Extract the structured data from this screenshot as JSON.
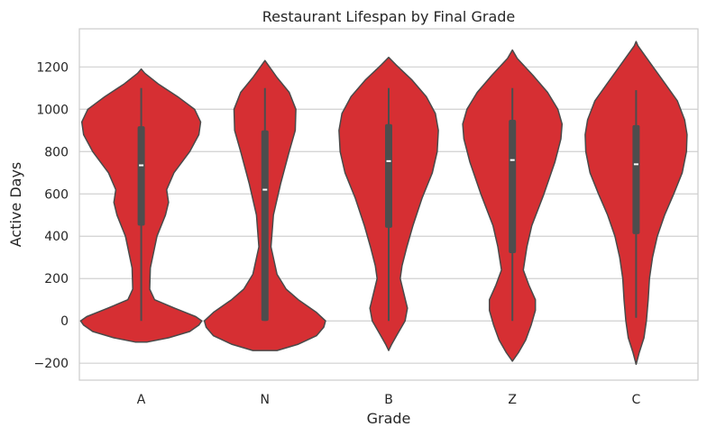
{
  "chart_data": {
    "type": "violin",
    "title": "Restaurant Lifespan by Final Grade",
    "xlabel": "Grade",
    "ylabel": "Active Days",
    "categories": [
      "A",
      "N",
      "B",
      "Z",
      "C"
    ],
    "ylim": [
      -280,
      1380
    ],
    "yticks": [
      -200,
      0,
      200,
      400,
      600,
      800,
      1000,
      1200
    ],
    "ytick_labels": [
      "−200",
      "0",
      "200",
      "400",
      "600",
      "800",
      "1000",
      "1200"
    ],
    "grid": true,
    "colors": {
      "fill": "#d62f33",
      "edge": "#4a4a4a",
      "box": "#4d4d4d",
      "median": "#ffffff",
      "grid": "#d0d0d0",
      "frame": "#cccccc"
    },
    "violins": [
      {
        "category": "A",
        "whisker_low": 0,
        "whisker_high": 1100,
        "q1": 450,
        "median": 735,
        "q3": 920,
        "profile": [
          [
            -100,
            0.1
          ],
          [
            -80,
            0.45
          ],
          [
            -50,
            0.8
          ],
          [
            -20,
            0.95
          ],
          [
            0,
            1.0
          ],
          [
            20,
            0.9
          ],
          [
            60,
            0.55
          ],
          [
            100,
            0.22
          ],
          [
            150,
            0.14
          ],
          [
            250,
            0.15
          ],
          [
            400,
            0.26
          ],
          [
            500,
            0.4
          ],
          [
            560,
            0.45
          ],
          [
            620,
            0.42
          ],
          [
            700,
            0.54
          ],
          [
            800,
            0.8
          ],
          [
            880,
            0.95
          ],
          [
            940,
            0.98
          ],
          [
            1000,
            0.88
          ],
          [
            1060,
            0.6
          ],
          [
            1120,
            0.28
          ],
          [
            1170,
            0.06
          ],
          [
            1190,
            0
          ]
        ]
      },
      {
        "category": "N",
        "whisker_low": 0,
        "whisker_high": 1100,
        "q1": 0,
        "median": 620,
        "q3": 900,
        "profile": [
          [
            -140,
            0.2
          ],
          [
            -110,
            0.55
          ],
          [
            -70,
            0.85
          ],
          [
            -30,
            0.97
          ],
          [
            0,
            1.0
          ],
          [
            40,
            0.85
          ],
          [
            100,
            0.55
          ],
          [
            150,
            0.35
          ],
          [
            220,
            0.2
          ],
          [
            350,
            0.1
          ],
          [
            500,
            0.14
          ],
          [
            650,
            0.26
          ],
          [
            800,
            0.4
          ],
          [
            900,
            0.5
          ],
          [
            1000,
            0.51
          ],
          [
            1080,
            0.4
          ],
          [
            1150,
            0.2
          ],
          [
            1210,
            0.05
          ],
          [
            1230,
            0
          ]
        ]
      },
      {
        "category": "B",
        "whisker_low": 0,
        "whisker_high": 1100,
        "q1": 440,
        "median": 755,
        "q3": 930,
        "profile": [
          [
            -140,
            0
          ],
          [
            -110,
            0.05
          ],
          [
            -60,
            0.15
          ],
          [
            0,
            0.27
          ],
          [
            60,
            0.31
          ],
          [
            130,
            0.25
          ],
          [
            200,
            0.19
          ],
          [
            260,
            0.22
          ],
          [
            350,
            0.3
          ],
          [
            450,
            0.4
          ],
          [
            580,
            0.55
          ],
          [
            700,
            0.72
          ],
          [
            800,
            0.8
          ],
          [
            900,
            0.82
          ],
          [
            980,
            0.77
          ],
          [
            1060,
            0.62
          ],
          [
            1140,
            0.38
          ],
          [
            1210,
            0.12
          ],
          [
            1245,
            0
          ]
        ]
      },
      {
        "category": "Z",
        "whisker_low": 0,
        "whisker_high": 1100,
        "q1": 320,
        "median": 760,
        "q3": 950,
        "profile": [
          [
            -190,
            0
          ],
          [
            -150,
            0.1
          ],
          [
            -90,
            0.22
          ],
          [
            -20,
            0.31
          ],
          [
            50,
            0.38
          ],
          [
            100,
            0.38
          ],
          [
            170,
            0.27
          ],
          [
            240,
            0.18
          ],
          [
            350,
            0.24
          ],
          [
            450,
            0.32
          ],
          [
            600,
            0.52
          ],
          [
            750,
            0.7
          ],
          [
            860,
            0.8
          ],
          [
            930,
            0.82
          ],
          [
            1000,
            0.75
          ],
          [
            1080,
            0.58
          ],
          [
            1160,
            0.34
          ],
          [
            1240,
            0.08
          ],
          [
            1280,
            0
          ]
        ]
      },
      {
        "category": "C",
        "whisker_low": 15,
        "whisker_high": 1090,
        "q1": 410,
        "median": 740,
        "q3": 925,
        "profile": [
          [
            -205,
            0
          ],
          [
            -150,
            0.05
          ],
          [
            -80,
            0.13
          ],
          [
            0,
            0.17
          ],
          [
            100,
            0.2
          ],
          [
            200,
            0.22
          ],
          [
            300,
            0.27
          ],
          [
            400,
            0.35
          ],
          [
            500,
            0.47
          ],
          [
            600,
            0.62
          ],
          [
            700,
            0.76
          ],
          [
            800,
            0.83
          ],
          [
            880,
            0.84
          ],
          [
            950,
            0.8
          ],
          [
            1040,
            0.68
          ],
          [
            1120,
            0.48
          ],
          [
            1200,
            0.28
          ],
          [
            1260,
            0.13
          ],
          [
            1300,
            0.03
          ],
          [
            1320,
            0
          ]
        ]
      }
    ]
  }
}
